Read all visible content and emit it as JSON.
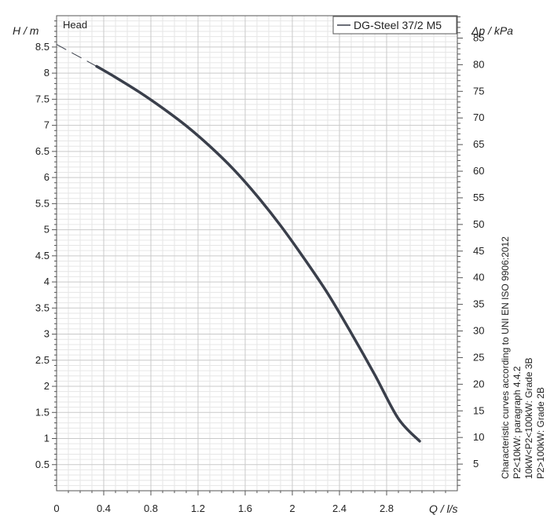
{
  "chart_data": {
    "type": "line",
    "title": "",
    "panel_label": "Head",
    "xlabel": "Q / l/s",
    "ylabel_left": "H / m",
    "ylabel_right": "Δp / kPa",
    "xlim": [
      0,
      3.4
    ],
    "ylim_left": [
      0,
      9.1
    ],
    "ylim_right": [
      0,
      89.2
    ],
    "grid": true,
    "legend_position": "top-right",
    "x_ticks": [
      0,
      0.4,
      0.8,
      1.2,
      1.6,
      2,
      2.4,
      2.8
    ],
    "x_tick_labels": [
      "0",
      "0.4",
      "0.8",
      "1.2",
      "1.6",
      "2",
      "2.4",
      "2.8"
    ],
    "y_left_ticks": [
      0.5,
      1,
      1.5,
      2,
      2.5,
      3,
      3.5,
      4,
      4.5,
      5,
      5.5,
      6,
      6.5,
      7,
      7.5,
      8,
      8.5
    ],
    "y_left_tick_labels": [
      "0.5",
      "1",
      "1.5",
      "2",
      "2.5",
      "3",
      "3.5",
      "4",
      "4.5",
      "5",
      "5.5",
      "6",
      "6.5",
      "7",
      "7.5",
      "8",
      "8.5"
    ],
    "y_right_ticks": [
      5,
      10,
      15,
      20,
      25,
      30,
      35,
      40,
      45,
      50,
      55,
      60,
      65,
      70,
      75,
      80,
      85
    ],
    "y_right_tick_labels": [
      "5",
      "10",
      "15",
      "20",
      "25",
      "30",
      "35",
      "40",
      "45",
      "50",
      "55",
      "60",
      "65",
      "70",
      "75",
      "80",
      "85"
    ],
    "series": [
      {
        "name": "DG-Steel 37/2 M5",
        "color": "#3a3f4b",
        "x": [
          0.34,
          0.5,
          0.7,
          0.9,
          1.1,
          1.3,
          1.5,
          1.7,
          1.9,
          2.1,
          2.3,
          2.5,
          2.7,
          2.9,
          3.08
        ],
        "y": [
          8.13,
          7.92,
          7.64,
          7.33,
          6.99,
          6.6,
          6.16,
          5.65,
          5.08,
          4.45,
          3.78,
          3.02,
          2.22,
          1.38,
          0.95
        ]
      }
    ],
    "extrapolation": {
      "x": [
        0,
        0.34
      ],
      "y": [
        8.55,
        8.13
      ]
    },
    "notes": [
      "Characteristic curves according to UNI EN ISO 9906:2012",
      "P2<10kW:  paragraph 4.4.2",
      "10kW<P2<100kW: Grade 3B",
      "P2>100kW: Grade 2B"
    ]
  }
}
